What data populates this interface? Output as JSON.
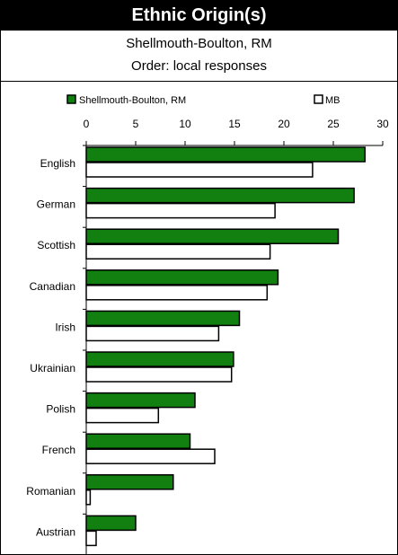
{
  "header": {
    "title": "Ethnic Origin(s)",
    "subtitle": "Shellmouth-Boulton, RM",
    "order_note": "Order: local responses"
  },
  "chart_data": {
    "type": "bar",
    "orientation": "horizontal",
    "categories": [
      "English",
      "German",
      "Scottish",
      "Canadian",
      "Irish",
      "Ukrainian",
      "Polish",
      "French",
      "Romanian",
      "Austrian"
    ],
    "series": [
      {
        "name": "Shellmouth-Boulton, RM",
        "color": "#118011",
        "values": [
          28.2,
          27.1,
          25.5,
          19.4,
          15.5,
          14.9,
          11.0,
          10.5,
          8.8,
          5.0
        ]
      },
      {
        "name": "MB",
        "color": "#ffffff",
        "values": [
          22.9,
          19.1,
          18.6,
          18.3,
          13.4,
          14.7,
          7.3,
          13.0,
          0.4,
          1.0
        ]
      }
    ],
    "xlim": [
      0,
      30
    ],
    "xticks": [
      "0",
      "5",
      "10",
      "15",
      "20",
      "25",
      "30"
    ],
    "axis_position": "top",
    "legend_position": "top",
    "grid": false
  }
}
